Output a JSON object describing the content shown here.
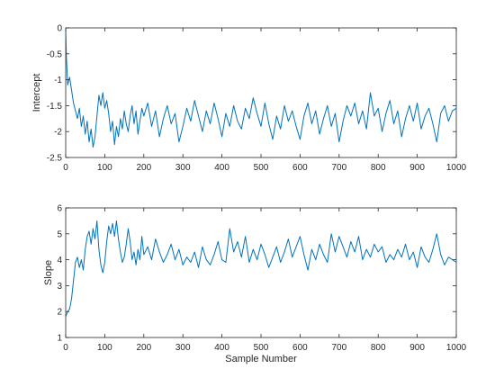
{
  "chart_data": [
    {
      "type": "line",
      "title": "",
      "xlabel": "",
      "ylabel": "Intercept",
      "xlim": [
        0,
        1000
      ],
      "ylim": [
        -2.5,
        0
      ],
      "xticks": [
        0,
        100,
        200,
        300,
        400,
        500,
        600,
        700,
        800,
        900,
        1000
      ],
      "yticks": [
        -2.5,
        -2,
        -1.5,
        -1,
        -0.5,
        0
      ],
      "ytick_labels": [
        "-2.5",
        "-2",
        "-1.5",
        "-1",
        "-0.5",
        "0"
      ],
      "grid": false,
      "series": [
        {
          "color": "#0072BD",
          "x": [
            0,
            2,
            5,
            10,
            15,
            20,
            25,
            30,
            35,
            40,
            45,
            50,
            55,
            60,
            65,
            70,
            75,
            80,
            85,
            90,
            95,
            100,
            105,
            110,
            115,
            120,
            125,
            130,
            135,
            140,
            145,
            150,
            155,
            160,
            165,
            170,
            175,
            180,
            185,
            190,
            195,
            200,
            210,
            220,
            230,
            240,
            250,
            260,
            270,
            280,
            290,
            300,
            310,
            320,
            330,
            340,
            350,
            360,
            370,
            380,
            390,
            400,
            410,
            420,
            430,
            440,
            450,
            460,
            470,
            480,
            490,
            500,
            510,
            520,
            530,
            540,
            550,
            560,
            570,
            580,
            590,
            600,
            610,
            620,
            630,
            640,
            650,
            660,
            670,
            680,
            690,
            700,
            710,
            720,
            730,
            740,
            750,
            760,
            770,
            780,
            790,
            800,
            810,
            820,
            830,
            840,
            850,
            860,
            870,
            880,
            890,
            900,
            910,
            920,
            930,
            940,
            950,
            960,
            970,
            980,
            990,
            1000
          ],
          "y": [
            0,
            -0.6,
            -1.1,
            -0.95,
            -1.2,
            -1.45,
            -1.6,
            -1.75,
            -1.55,
            -1.9,
            -1.7,
            -2.05,
            -1.8,
            -2.2,
            -1.95,
            -2.3,
            -2.1,
            -1.7,
            -1.3,
            -1.5,
            -1.25,
            -1.55,
            -1.4,
            -1.65,
            -2.0,
            -1.8,
            -2.25,
            -1.9,
            -2.1,
            -1.75,
            -1.95,
            -1.6,
            -1.85,
            -2.0,
            -1.7,
            -1.5,
            -1.85,
            -1.6,
            -2.05,
            -1.8,
            -1.55,
            -1.7,
            -1.45,
            -1.9,
            -1.6,
            -2.1,
            -1.75,
            -1.5,
            -1.85,
            -1.65,
            -2.2,
            -1.9,
            -1.55,
            -1.8,
            -1.4,
            -1.7,
            -2.0,
            -1.6,
            -1.85,
            -1.45,
            -1.75,
            -2.1,
            -1.65,
            -1.9,
            -1.5,
            -1.8,
            -1.95,
            -1.55,
            -1.75,
            -1.35,
            -1.65,
            -1.9,
            -1.45,
            -1.85,
            -2.15,
            -1.7,
            -1.95,
            -1.5,
            -1.8,
            -1.6,
            -1.9,
            -2.15,
            -1.7,
            -1.45,
            -1.85,
            -1.6,
            -2.05,
            -1.75,
            -1.5,
            -1.9,
            -1.65,
            -2.2,
            -1.8,
            -1.5,
            -1.7,
            -1.45,
            -1.85,
            -1.6,
            -1.95,
            -1.25,
            -1.7,
            -1.55,
            -2.0,
            -1.65,
            -1.4,
            -1.85,
            -1.6,
            -2.1,
            -1.75,
            -1.5,
            -1.8,
            -1.45,
            -1.95,
            -1.7,
            -1.55,
            -1.85,
            -2.2,
            -1.65,
            -1.5,
            -1.8,
            -1.6,
            -1.55
          ]
        }
      ]
    },
    {
      "type": "line",
      "title": "",
      "xlabel": "Sample Number",
      "ylabel": "Slope",
      "xlim": [
        0,
        1000
      ],
      "ylim": [
        1,
        6
      ],
      "xticks": [
        0,
        100,
        200,
        300,
        400,
        500,
        600,
        700,
        800,
        900,
        1000
      ],
      "yticks": [
        1,
        2,
        3,
        4,
        5,
        6
      ],
      "ytick_labels": [
        "1",
        "2",
        "3",
        "4",
        "5",
        "6"
      ],
      "grid": false,
      "series": [
        {
          "color": "#0072BD",
          "x": [
            0,
            5,
            10,
            15,
            20,
            25,
            30,
            35,
            40,
            45,
            50,
            55,
            60,
            65,
            70,
            75,
            80,
            85,
            90,
            95,
            100,
            105,
            110,
            115,
            120,
            125,
            130,
            135,
            140,
            145,
            150,
            155,
            160,
            165,
            170,
            175,
            180,
            185,
            190,
            195,
            200,
            210,
            220,
            230,
            240,
            250,
            260,
            270,
            280,
            290,
            300,
            310,
            320,
            330,
            340,
            350,
            360,
            370,
            380,
            390,
            400,
            410,
            420,
            430,
            440,
            450,
            460,
            470,
            480,
            490,
            500,
            510,
            520,
            530,
            540,
            550,
            560,
            570,
            580,
            590,
            600,
            610,
            620,
            630,
            640,
            650,
            660,
            670,
            680,
            690,
            700,
            710,
            720,
            730,
            740,
            750,
            760,
            770,
            780,
            790,
            800,
            810,
            820,
            830,
            840,
            850,
            860,
            870,
            880,
            890,
            900,
            910,
            920,
            930,
            940,
            950,
            960,
            970,
            980,
            990,
            1000
          ],
          "y": [
            1.8,
            2.0,
            2.1,
            2.5,
            3.2,
            3.9,
            4.1,
            3.7,
            4.0,
            3.6,
            4.4,
            4.9,
            5.1,
            4.6,
            5.2,
            4.8,
            5.5,
            4.4,
            3.8,
            3.5,
            3.9,
            4.7,
            5.3,
            5.0,
            5.4,
            4.9,
            5.5,
            4.8,
            4.3,
            3.9,
            4.1,
            4.6,
            5.2,
            4.7,
            4.0,
            4.3,
            3.8,
            4.4,
            4.0,
            4.9,
            4.2,
            4.5,
            4.0,
            4.8,
            4.3,
            3.9,
            4.2,
            4.6,
            4.0,
            4.4,
            3.8,
            4.1,
            3.9,
            4.3,
            3.7,
            4.5,
            4.0,
            3.8,
            4.2,
            4.7,
            4.0,
            3.9,
            5.2,
            4.3,
            4.7,
            4.1,
            4.9,
            3.9,
            4.4,
            4.0,
            4.6,
            4.2,
            3.7,
            4.1,
            4.5,
            3.9,
            4.3,
            4.8,
            4.1,
            4.5,
            4.9,
            4.2,
            3.6,
            4.4,
            4.0,
            4.6,
            4.2,
            3.9,
            5.0,
            4.3,
            4.9,
            4.5,
            4.1,
            4.7,
            4.3,
            4.9,
            4.0,
            4.4,
            4.1,
            4.6,
            4.3,
            4.5,
            3.9,
            4.2,
            4.0,
            4.4,
            4.1,
            4.6,
            4.0,
            4.3,
            3.7,
            4.5,
            4.1,
            3.9,
            4.4,
            5.0,
            4.2,
            3.8,
            4.1,
            4.0,
            3.9
          ]
        }
      ]
    }
  ],
  "colors": {
    "axis": "#262626",
    "line": "#0072BD",
    "background": "#ffffff"
  }
}
